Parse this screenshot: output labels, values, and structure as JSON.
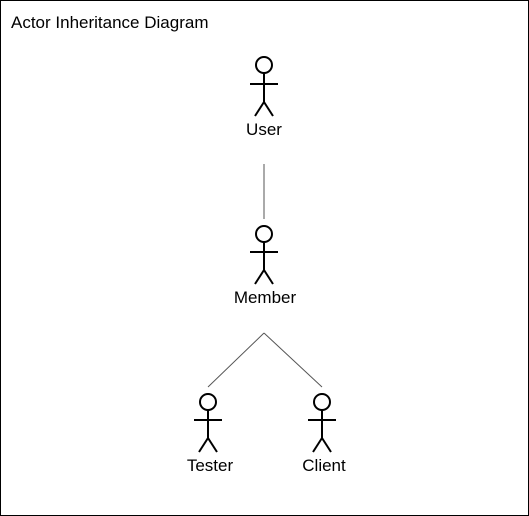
{
  "diagram": {
    "title": "Actor Inheritance Diagram",
    "actors": [
      {
        "id": "user",
        "label": "User"
      },
      {
        "id": "member",
        "label": "Member"
      },
      {
        "id": "tester",
        "label": "Tester"
      },
      {
        "id": "client",
        "label": "Client"
      }
    ],
    "relationships": [
      {
        "from": "member",
        "to": "user",
        "type": "generalization"
      },
      {
        "from": "tester",
        "to": "member",
        "type": "generalization"
      },
      {
        "from": "client",
        "to": "member",
        "type": "generalization"
      }
    ],
    "colors": {
      "stroke": "#000000",
      "background": "#ffffff",
      "connector": "#555555"
    }
  }
}
